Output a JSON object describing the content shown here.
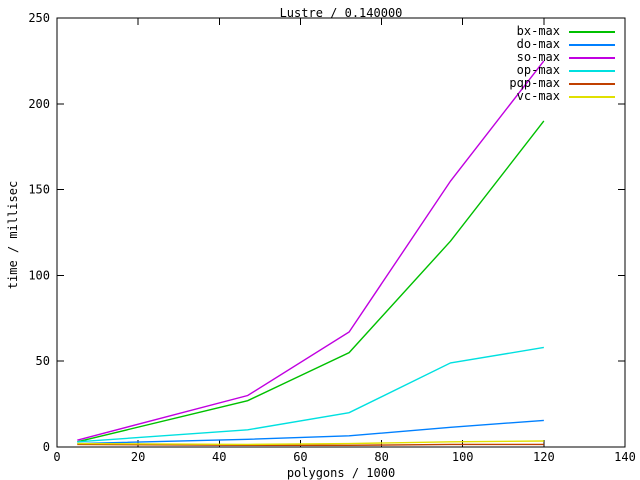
{
  "chart_data": {
    "type": "line",
    "title": "Lustre / 0.140000",
    "xlabel": "polygons / 1000",
    "ylabel": "time / millisec",
    "xlim": [
      0,
      140
    ],
    "ylim": [
      0,
      250
    ],
    "xticks": [
      0,
      20,
      40,
      60,
      80,
      100,
      120,
      140
    ],
    "yticks": [
      0,
      50,
      100,
      150,
      200,
      250
    ],
    "grid": false,
    "legend_position": "top-right-inside",
    "background": "#ffffff",
    "axis_color": "#000000",
    "x": [
      5,
      47,
      72,
      97,
      120
    ],
    "series": [
      {
        "name": "bx-max",
        "color": "#00c000",
        "values": [
          3,
          27,
          55,
          120,
          190
        ]
      },
      {
        "name": "do-max",
        "color": "#0080ff",
        "values": [
          2,
          4.5,
          6.5,
          11.5,
          15.5
        ]
      },
      {
        "name": "so-max",
        "color": "#c000e0",
        "values": [
          4,
          30,
          67,
          155,
          225
        ]
      },
      {
        "name": "op-max",
        "color": "#00e0e0",
        "values": [
          3,
          10,
          20,
          49,
          58
        ]
      },
      {
        "name": "pqp-max",
        "color": "#c04000",
        "values": [
          1.5,
          1,
          1,
          1.5,
          1.5
        ]
      },
      {
        "name": "vc-max",
        "color": "#e0e000",
        "values": [
          2,
          1.5,
          2,
          3,
          3.5
        ]
      }
    ]
  }
}
